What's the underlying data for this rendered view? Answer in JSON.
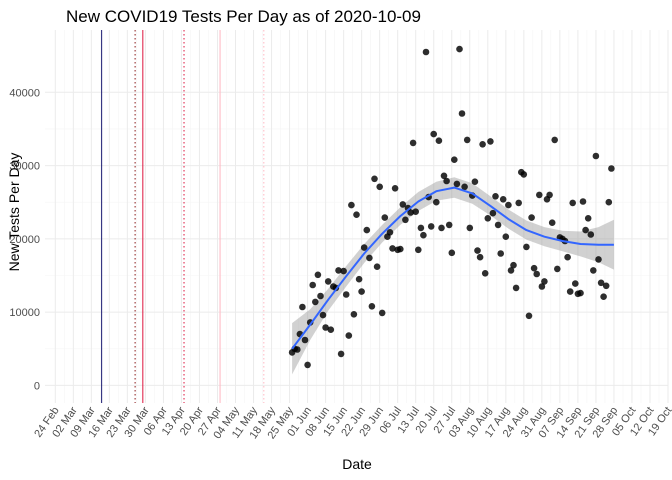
{
  "chart_data": {
    "type": "scatter",
    "title": "New COVID19 Tests Per Day as of 2020-10-09",
    "xlabel": "Date",
    "ylabel": "New Tests Per Day",
    "xlim": [
      "2020-02-20",
      "2020-10-19"
    ],
    "ylim": [
      -2400,
      48500
    ],
    "x_ticks": [
      "2020-02-24",
      "2020-03-02",
      "2020-03-09",
      "2020-03-16",
      "2020-03-23",
      "2020-03-30",
      "2020-04-06",
      "2020-04-13",
      "2020-04-20",
      "2020-04-27",
      "2020-05-04",
      "2020-05-11",
      "2020-05-18",
      "2020-05-25",
      "2020-06-01",
      "2020-06-08",
      "2020-06-15",
      "2020-06-22",
      "2020-06-29",
      "2020-07-06",
      "2020-07-13",
      "2020-07-20",
      "2020-07-27",
      "2020-08-03",
      "2020-08-10",
      "2020-08-17",
      "2020-08-24",
      "2020-08-31",
      "2020-09-07",
      "2020-09-14",
      "2020-09-21",
      "2020-09-28",
      "2020-10-05",
      "2020-10-12",
      "2020-10-19"
    ],
    "x_tick_labels": [
      "24 Feb",
      "02 Mar",
      "09 Mar",
      "16 Mar",
      "23 Mar",
      "30 Mar",
      "06 Apr",
      "13 Apr",
      "20 Apr",
      "27 Apr",
      "04 May",
      "11 May",
      "18 May",
      "25 May",
      "01 Jun",
      "08 Jun",
      "15 Jun",
      "22 Jun",
      "29 Jun",
      "06 Jul",
      "13 Jul",
      "20 Jul",
      "27 Jul",
      "03 Aug",
      "10 Aug",
      "17 Aug",
      "24 Aug",
      "31 Aug",
      "07 Sep",
      "14 Sep",
      "21 Sep",
      "28 Sep",
      "05 Oct",
      "12 Oct",
      "19 Oct"
    ],
    "y_ticks": [
      0,
      10000,
      20000,
      30000,
      40000
    ],
    "y_tick_labels": [
      "0",
      "10000",
      "20000",
      "30000",
      "40000"
    ],
    "grid": true,
    "vertical_lines": [
      {
        "x": "2020-03-13",
        "color": "#191970",
        "style": "solid"
      },
      {
        "x": "2020-03-26",
        "color": "#8b1a1a",
        "style": "dotted"
      },
      {
        "x": "2020-03-29",
        "color": "#dc143c",
        "style": "solid"
      },
      {
        "x": "2020-04-14",
        "color": "#dc143c",
        "style": "dotted"
      },
      {
        "x": "2020-04-28",
        "color": "#ffb6c1",
        "style": "solid"
      },
      {
        "x": "2020-05-15",
        "color": "#ffb6c1",
        "style": "dotted"
      }
    ],
    "points": [
      {
        "x": "2020-05-26",
        "y": 4500
      },
      {
        "x": "2020-05-27",
        "y": 5000
      },
      {
        "x": "2020-05-28",
        "y": 4900
      },
      {
        "x": "2020-05-29",
        "y": 7000
      },
      {
        "x": "2020-05-30",
        "y": 10700
      },
      {
        "x": "2020-05-31",
        "y": 6200
      },
      {
        "x": "2020-06-01",
        "y": 2800
      },
      {
        "x": "2020-06-02",
        "y": 8600
      },
      {
        "x": "2020-06-03",
        "y": 13700
      },
      {
        "x": "2020-06-04",
        "y": 11400
      },
      {
        "x": "2020-06-05",
        "y": 15100
      },
      {
        "x": "2020-06-06",
        "y": 12200
      },
      {
        "x": "2020-06-07",
        "y": 9600
      },
      {
        "x": "2020-06-08",
        "y": 7900
      },
      {
        "x": "2020-06-09",
        "y": 14200
      },
      {
        "x": "2020-06-10",
        "y": 7600
      },
      {
        "x": "2020-06-11",
        "y": 13500
      },
      {
        "x": "2020-06-12",
        "y": 13300
      },
      {
        "x": "2020-06-13",
        "y": 15700
      },
      {
        "x": "2020-06-14",
        "y": 4300
      },
      {
        "x": "2020-06-15",
        "y": 15600
      },
      {
        "x": "2020-06-16",
        "y": 12400
      },
      {
        "x": "2020-06-17",
        "y": 6800
      },
      {
        "x": "2020-06-18",
        "y": 24600
      },
      {
        "x": "2020-06-19",
        "y": 9700
      },
      {
        "x": "2020-06-20",
        "y": 23300
      },
      {
        "x": "2020-06-21",
        "y": 14500
      },
      {
        "x": "2020-06-22",
        "y": 12800
      },
      {
        "x": "2020-06-23",
        "y": 18800
      },
      {
        "x": "2020-06-24",
        "y": 21200
      },
      {
        "x": "2020-06-25",
        "y": 17400
      },
      {
        "x": "2020-06-26",
        "y": 10800
      },
      {
        "x": "2020-06-27",
        "y": 28200
      },
      {
        "x": "2020-06-28",
        "y": 16200
      },
      {
        "x": "2020-06-29",
        "y": 27100
      },
      {
        "x": "2020-06-30",
        "y": 9900
      },
      {
        "x": "2020-07-01",
        "y": 22900
      },
      {
        "x": "2020-07-02",
        "y": 20300
      },
      {
        "x": "2020-07-03",
        "y": 20900
      },
      {
        "x": "2020-07-04",
        "y": 18700
      },
      {
        "x": "2020-07-05",
        "y": 26900
      },
      {
        "x": "2020-07-06",
        "y": 18500
      },
      {
        "x": "2020-07-07",
        "y": 18600
      },
      {
        "x": "2020-07-08",
        "y": 24700
      },
      {
        "x": "2020-07-09",
        "y": 22600
      },
      {
        "x": "2020-07-10",
        "y": 24200
      },
      {
        "x": "2020-07-11",
        "y": 23600
      },
      {
        "x": "2020-07-12",
        "y": 33100
      },
      {
        "x": "2020-07-13",
        "y": 23700
      },
      {
        "x": "2020-07-14",
        "y": 18500
      },
      {
        "x": "2020-07-15",
        "y": 21500
      },
      {
        "x": "2020-07-16",
        "y": 20500
      },
      {
        "x": "2020-07-17",
        "y": 45500
      },
      {
        "x": "2020-07-18",
        "y": 25700
      },
      {
        "x": "2020-07-19",
        "y": 21700
      },
      {
        "x": "2020-07-20",
        "y": 34300
      },
      {
        "x": "2020-07-21",
        "y": 25000
      },
      {
        "x": "2020-07-22",
        "y": 33400
      },
      {
        "x": "2020-07-23",
        "y": 21500
      },
      {
        "x": "2020-07-24",
        "y": 28600
      },
      {
        "x": "2020-07-25",
        "y": 27900
      },
      {
        "x": "2020-07-26",
        "y": 21900
      },
      {
        "x": "2020-07-27",
        "y": 18100
      },
      {
        "x": "2020-07-28",
        "y": 30800
      },
      {
        "x": "2020-07-29",
        "y": 27500
      },
      {
        "x": "2020-07-30",
        "y": 45900
      },
      {
        "x": "2020-07-31",
        "y": 37100
      },
      {
        "x": "2020-08-01",
        "y": 27100
      },
      {
        "x": "2020-08-02",
        "y": 33500
      },
      {
        "x": "2020-08-03",
        "y": 21500
      },
      {
        "x": "2020-08-04",
        "y": 25900
      },
      {
        "x": "2020-08-05",
        "y": 27800
      },
      {
        "x": "2020-08-06",
        "y": 18400
      },
      {
        "x": "2020-08-07",
        "y": 17500
      },
      {
        "x": "2020-08-08",
        "y": 32900
      },
      {
        "x": "2020-08-09",
        "y": 15300
      },
      {
        "x": "2020-08-10",
        "y": 22800
      },
      {
        "x": "2020-08-11",
        "y": 33300
      },
      {
        "x": "2020-08-12",
        "y": 23500
      },
      {
        "x": "2020-08-13",
        "y": 25800
      },
      {
        "x": "2020-08-14",
        "y": 21900
      },
      {
        "x": "2020-08-15",
        "y": 18000
      },
      {
        "x": "2020-08-16",
        "y": 25400
      },
      {
        "x": "2020-08-17",
        "y": 20300
      },
      {
        "x": "2020-08-18",
        "y": 24600
      },
      {
        "x": "2020-08-19",
        "y": 15700
      },
      {
        "x": "2020-08-20",
        "y": 16400
      },
      {
        "x": "2020-08-21",
        "y": 13300
      },
      {
        "x": "2020-08-22",
        "y": 24900
      },
      {
        "x": "2020-08-23",
        "y": 29100
      },
      {
        "x": "2020-08-24",
        "y": 28800
      },
      {
        "x": "2020-08-25",
        "y": 18900
      },
      {
        "x": "2020-08-26",
        "y": 9500
      },
      {
        "x": "2020-08-27",
        "y": 22900
      },
      {
        "x": "2020-08-28",
        "y": 16000
      },
      {
        "x": "2020-08-29",
        "y": 15200
      },
      {
        "x": "2020-08-30",
        "y": 26000
      },
      {
        "x": "2020-08-31",
        "y": 13500
      },
      {
        "x": "2020-09-01",
        "y": 14200
      },
      {
        "x": "2020-09-02",
        "y": 25400
      },
      {
        "x": "2020-09-03",
        "y": 26000
      },
      {
        "x": "2020-09-04",
        "y": 22200
      },
      {
        "x": "2020-09-05",
        "y": 33500
      },
      {
        "x": "2020-09-06",
        "y": 15900
      },
      {
        "x": "2020-09-07",
        "y": 20200
      },
      {
        "x": "2020-09-08",
        "y": 20000
      },
      {
        "x": "2020-09-09",
        "y": 19700
      },
      {
        "x": "2020-09-10",
        "y": 17500
      },
      {
        "x": "2020-09-11",
        "y": 12800
      },
      {
        "x": "2020-09-12",
        "y": 24900
      },
      {
        "x": "2020-09-13",
        "y": 13900
      },
      {
        "x": "2020-09-14",
        "y": 12500
      },
      {
        "x": "2020-09-15",
        "y": 12600
      },
      {
        "x": "2020-09-16",
        "y": 25100
      },
      {
        "x": "2020-09-17",
        "y": 21200
      },
      {
        "x": "2020-09-18",
        "y": 22800
      },
      {
        "x": "2020-09-19",
        "y": 20600
      },
      {
        "x": "2020-09-20",
        "y": 15700
      },
      {
        "x": "2020-09-21",
        "y": 31300
      },
      {
        "x": "2020-09-22",
        "y": 17200
      },
      {
        "x": "2020-09-23",
        "y": 14000
      },
      {
        "x": "2020-09-24",
        "y": 12100
      },
      {
        "x": "2020-09-25",
        "y": 13600
      },
      {
        "x": "2020-09-26",
        "y": 25000
      },
      {
        "x": "2020-09-27",
        "y": 29600
      }
    ],
    "smooth": [
      {
        "x": "2020-05-26",
        "y": 5000,
        "lo": 1500,
        "hi": 8500
      },
      {
        "x": "2020-06-02",
        "y": 8300,
        "lo": 6200,
        "hi": 10400
      },
      {
        "x": "2020-06-09",
        "y": 11700,
        "lo": 10200,
        "hi": 13200
      },
      {
        "x": "2020-06-16",
        "y": 14900,
        "lo": 13500,
        "hi": 16300
      },
      {
        "x": "2020-06-23",
        "y": 18000,
        "lo": 16700,
        "hi": 19300
      },
      {
        "x": "2020-06-30",
        "y": 20700,
        "lo": 19500,
        "hi": 21900
      },
      {
        "x": "2020-07-07",
        "y": 23100,
        "lo": 21900,
        "hi": 24300
      },
      {
        "x": "2020-07-14",
        "y": 25100,
        "lo": 23800,
        "hi": 26400
      },
      {
        "x": "2020-07-21",
        "y": 26500,
        "lo": 25200,
        "hi": 27800
      },
      {
        "x": "2020-07-28",
        "y": 27000,
        "lo": 25600,
        "hi": 28400
      },
      {
        "x": "2020-08-04",
        "y": 26200,
        "lo": 24800,
        "hi": 27600
      },
      {
        "x": "2020-08-11",
        "y": 24500,
        "lo": 23200,
        "hi": 25800
      },
      {
        "x": "2020-08-18",
        "y": 22700,
        "lo": 21400,
        "hi": 24000
      },
      {
        "x": "2020-08-25",
        "y": 21200,
        "lo": 19900,
        "hi": 22500
      },
      {
        "x": "2020-09-01",
        "y": 20300,
        "lo": 19000,
        "hi": 21600
      },
      {
        "x": "2020-09-08",
        "y": 19700,
        "lo": 18300,
        "hi": 21100
      },
      {
        "x": "2020-09-15",
        "y": 19300,
        "lo": 17600,
        "hi": 21000
      },
      {
        "x": "2020-09-22",
        "y": 19200,
        "lo": 16800,
        "hi": 21600
      },
      {
        "x": "2020-09-28",
        "y": 19200,
        "lo": 15800,
        "hi": 22600
      }
    ],
    "colors": {
      "points": "#000000",
      "smooth_line": "#3366ff",
      "ribbon": "#999999",
      "grid_major": "#ebebeb",
      "grid_minor": "#f5f5f5"
    }
  }
}
